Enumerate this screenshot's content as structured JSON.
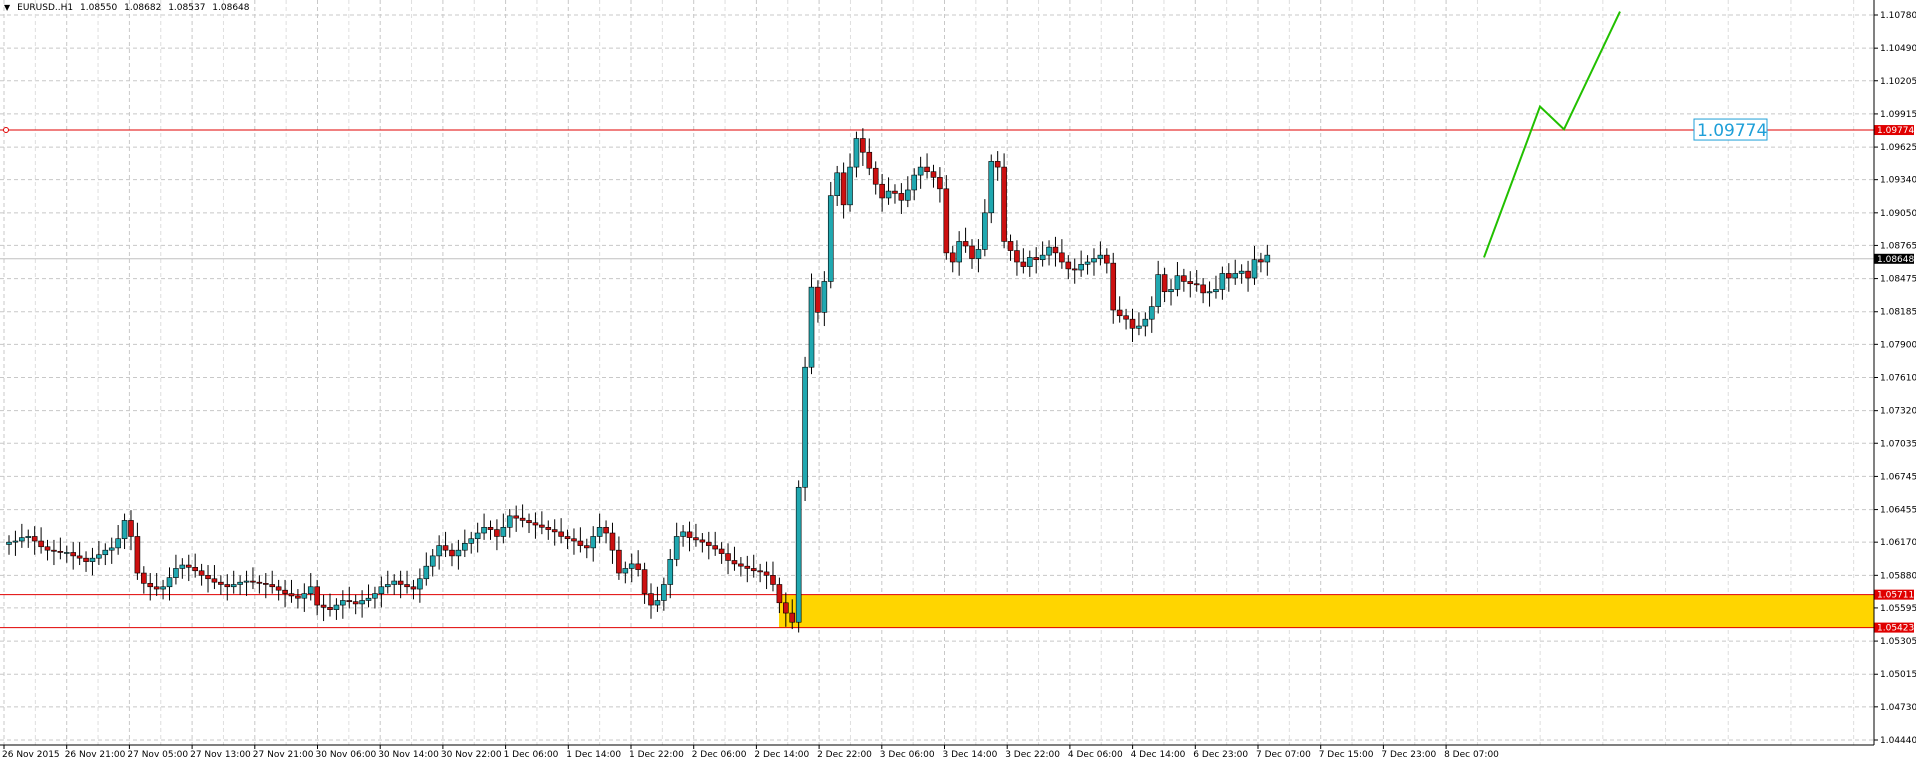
{
  "header": {
    "symbol": "EURUSD..H1",
    "open": "1.08550",
    "high": "1.08682",
    "low": "1.08537",
    "close": "1.08648"
  },
  "colors": {
    "background": "#ffffff",
    "grid": "#c8c8c8",
    "bull_body": "#20a8b0",
    "bear_body": "#cc1010",
    "wick": "#000000",
    "level_line": "#e00000",
    "zone_fill": "#ffd500",
    "projection": "#22c000",
    "level_label_text": "#1e9fd8"
  },
  "chart_data": {
    "type": "candlestick",
    "symbol": "EURUSD..H1",
    "grid": true,
    "y_ticks": [
      "1.10780",
      "1.10490",
      "1.10205",
      "1.09915",
      "1.09625",
      "1.09340",
      "1.09050",
      "1.08765",
      "1.08475",
      "1.08185",
      "1.07900",
      "1.07610",
      "1.07320",
      "1.07035",
      "1.06745",
      "1.06455",
      "1.06170",
      "1.05880",
      "1.05595",
      "1.05305",
      "1.05015",
      "1.04730",
      "1.04440"
    ],
    "ylim": [
      1.0444,
      1.1078
    ],
    "x_ticks": [
      "26 Nov 2015",
      "26 Nov 21:00",
      "27 Nov 05:00",
      "27 Nov 13:00",
      "27 Nov 21:00",
      "30 Nov 06:00",
      "30 Nov 14:00",
      "30 Nov 22:00",
      "1 Dec 06:00",
      "1 Dec 14:00",
      "1 Dec 22:00",
      "2 Dec 06:00",
      "2 Dec 14:00",
      "2 Dec 22:00",
      "3 Dec 06:00",
      "3 Dec 14:00",
      "3 Dec 22:00",
      "4 Dec 06:00",
      "4 Dec 14:00",
      "6 Dec 23:00",
      "7 Dec 07:00",
      "7 Dec 15:00",
      "7 Dec 23:00",
      "8 Dec 07:00"
    ],
    "close": [
      1.0617,
      1.0618,
      1.0621,
      1.0622,
      1.0618,
      1.0613,
      1.061,
      1.0609,
      1.0608,
      1.0608,
      1.0605,
      1.0603,
      1.06,
      1.0603,
      1.0606,
      1.061,
      1.0612,
      1.062,
      1.0636,
      1.0622,
      1.059,
      1.0581,
      1.0578,
      1.0576,
      1.0578,
      1.0586,
      1.0594,
      1.0597,
      1.0595,
      1.0592,
      1.0588,
      1.0585,
      1.0582,
      1.058,
      1.0578,
      1.058,
      1.0582,
      1.0583,
      1.0582,
      1.0581,
      1.058,
      1.0578,
      1.0575,
      1.0572,
      1.057,
      1.0568,
      1.0572,
      1.0578,
      1.0562,
      1.056,
      1.0558,
      1.0562,
      1.0566,
      1.0565,
      1.0563,
      1.0566,
      1.0568,
      1.0572,
      1.0578,
      1.058,
      1.0583,
      1.058,
      1.0578,
      1.0576,
      1.0585,
      1.0596,
      1.0605,
      1.0614,
      1.061,
      1.0605,
      1.061,
      1.0616,
      1.062,
      1.0625,
      1.063,
      1.0628,
      1.0622,
      1.063,
      1.064,
      1.0638,
      1.0636,
      1.0634,
      1.0632,
      1.063,
      1.0628,
      1.0626,
      1.0622,
      1.062,
      1.0618,
      1.0614,
      1.0612,
      1.0622,
      1.063,
      1.0625,
      1.061,
      1.059,
      1.0594,
      1.0598,
      1.0593,
      1.0572,
      1.0562,
      1.0566,
      1.058,
      1.0602,
      1.0622,
      1.0626,
      1.0621,
      1.0619,
      1.0617,
      1.0614,
      1.0611,
      1.0607,
      1.0601,
      1.0598,
      1.0596,
      1.0594,
      1.0592,
      1.0591,
      1.0588,
      1.058,
      1.0564,
      1.0555,
      1.0547,
      1.0665,
      1.077,
      1.084,
      1.0818,
      1.0845,
      1.092,
      1.094,
      1.0912,
      1.0945,
      1.097,
      1.0958,
      1.0944,
      1.093,
      1.0918,
      1.0924,
      1.0922,
      1.0916,
      1.0925,
      1.0938,
      1.0945,
      1.0941,
      1.0936,
      1.0926,
      1.087,
      1.0862,
      1.088,
      1.0876,
      1.0865,
      1.0873,
      1.0905,
      1.095,
      1.0945,
      1.088,
      1.0872,
      1.0862,
      1.0858,
      1.0866,
      1.0864,
      1.0868,
      1.0875,
      1.087,
      1.0862,
      1.0856,
      1.0855,
      1.086,
      1.0862,
      1.0865,
      1.0868,
      1.0861,
      1.082,
      1.0815,
      1.0812,
      1.0804,
      1.0806,
      1.0812,
      1.0823,
      1.0851,
      1.0836,
      1.0838,
      1.085,
      1.0845,
      1.0843,
      1.0842,
      1.0835,
      1.0836,
      1.0838,
      1.0852,
      1.0848,
      1.0852,
      1.0854,
      1.0848,
      1.0864,
      1.0862,
      1.0868
    ],
    "level_lines": [
      "1.09774",
      "1.05711",
      "1.05423"
    ],
    "current_price": "1.08648",
    "level_annotation": "1.09774",
    "zone": {
      "from": "2 Dec 13:00",
      "upper": 1.05711,
      "lower": 1.05423
    },
    "projection": [
      {
        "x": "8 Dec 07:00",
        "y": 1.0866
      },
      {
        "x": "8 Dec 14:00",
        "y": 1.0998
      },
      {
        "x": "8 Dec 17:00",
        "y": 1.0978
      },
      {
        "x": "8 Dec 24:00",
        "y": 1.1081
      }
    ]
  }
}
